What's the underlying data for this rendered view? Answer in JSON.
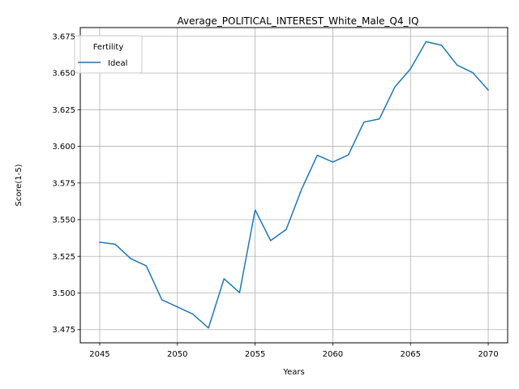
{
  "chart_data": {
    "type": "line",
    "title": "Average_POLITICAL_INTEREST_White_Male_Q4_IQ",
    "xlabel": "Years",
    "ylabel": "Score(1-5)",
    "xlim": [
      2043.75,
      2071.25
    ],
    "ylim": [
      3.466,
      3.681
    ],
    "xticks": [
      2045,
      2050,
      2055,
      2060,
      2065,
      2070
    ],
    "yticks": [
      3.475,
      3.5,
      3.525,
      3.55,
      3.575,
      3.6,
      3.625,
      3.65,
      3.675
    ],
    "ytick_labels": [
      "3.475",
      "3.500",
      "3.525",
      "3.550",
      "3.575",
      "3.600",
      "3.625",
      "3.650",
      "3.675"
    ],
    "grid": true,
    "legend": {
      "title": "Fertility",
      "placement": "top-left"
    },
    "series": [
      {
        "name": "Ideal",
        "color": "#1f77b4",
        "x": [
          2045,
          2046,
          2047,
          2048,
          2049,
          2050,
          2051,
          2052,
          2053,
          2054,
          2055,
          2056,
          2057,
          2058,
          2059,
          2060,
          2061,
          2062,
          2063,
          2064,
          2065,
          2066,
          2067,
          2068,
          2069,
          2070
        ],
        "y": [
          3.5346,
          3.5332,
          3.5234,
          3.5185,
          3.4953,
          3.4905,
          3.4855,
          3.4761,
          3.5097,
          3.5002,
          3.5566,
          3.5357,
          3.5433,
          3.5709,
          3.5939,
          3.5893,
          3.5941,
          3.6165,
          3.6187,
          3.6406,
          3.6528,
          3.6714,
          3.6689,
          3.6554,
          3.6503,
          3.6384
        ]
      }
    ]
  }
}
